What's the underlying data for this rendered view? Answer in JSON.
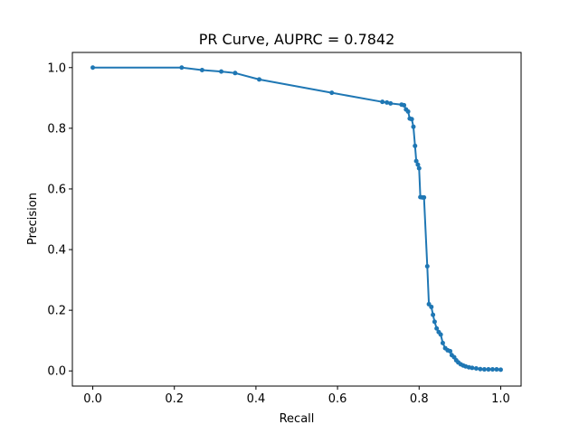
{
  "chart_data": {
    "type": "line",
    "title": "PR Curve, AUPRC = 0.7842",
    "xlabel": "Recall",
    "ylabel": "Precision",
    "xlim": [
      -0.05,
      1.05
    ],
    "ylim": [
      -0.05,
      1.05
    ],
    "xticks": [
      0.0,
      0.2,
      0.4,
      0.6,
      0.8,
      1.0
    ],
    "xtick_labels": [
      "0.0",
      "0.2",
      "0.4",
      "0.6",
      "0.8",
      "1.0"
    ],
    "yticks": [
      0.0,
      0.2,
      0.4,
      0.6,
      0.8,
      1.0
    ],
    "ytick_labels": [
      "0.0",
      "0.2",
      "0.4",
      "0.6",
      "0.8",
      "1.0"
    ],
    "grid": false,
    "marker": "dot",
    "color": "#1f77b4",
    "series": [
      {
        "x": [
          0.0,
          0.218,
          0.268,
          0.315,
          0.349,
          0.408,
          0.586,
          0.71,
          0.721,
          0.73,
          0.757,
          0.763,
          0.768,
          0.773,
          0.777,
          0.782,
          0.786,
          0.79,
          0.793,
          0.797,
          0.8,
          0.803,
          0.808,
          0.812,
          0.82,
          0.824,
          0.83,
          0.834,
          0.838,
          0.843,
          0.848,
          0.853,
          0.858,
          0.864,
          0.87,
          0.876,
          0.88,
          0.886,
          0.891,
          0.896,
          0.902,
          0.908,
          0.914,
          0.922,
          0.93,
          0.94,
          0.95,
          0.96,
          0.97,
          0.98,
          0.99,
          1.0
        ],
        "y": [
          1.0,
          1.0,
          0.992,
          0.987,
          0.982,
          0.961,
          0.917,
          0.887,
          0.885,
          0.882,
          0.878,
          0.876,
          0.862,
          0.855,
          0.832,
          0.83,
          0.805,
          0.742,
          0.692,
          0.68,
          0.668,
          0.573,
          0.572,
          0.572,
          0.345,
          0.22,
          0.211,
          0.185,
          0.162,
          0.14,
          0.128,
          0.12,
          0.092,
          0.075,
          0.068,
          0.065,
          0.052,
          0.045,
          0.035,
          0.028,
          0.022,
          0.018,
          0.015,
          0.012,
          0.01,
          0.008,
          0.006,
          0.005,
          0.005,
          0.005,
          0.005,
          0.004
        ]
      }
    ]
  }
}
